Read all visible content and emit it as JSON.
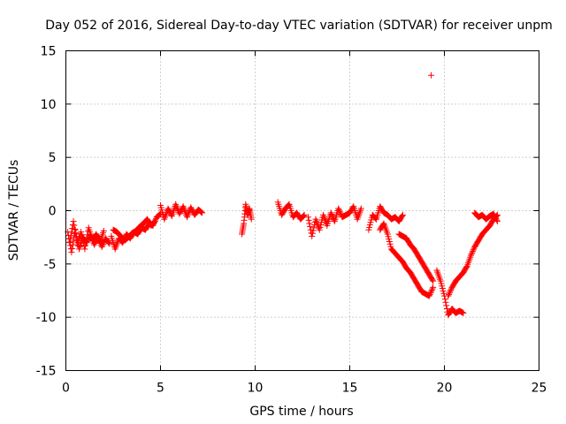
{
  "chart_data": {
    "type": "scatter",
    "title": "Day 052 of 2016, Sidereal Day-to-day VTEC variation (SDTVAR) for receiver unpm",
    "xlabel": "GPS time / hours",
    "ylabel": "SDTVAR / TECUs",
    "xlim": [
      0,
      25
    ],
    "ylim": [
      -15,
      15
    ],
    "xticks": [
      0,
      5,
      10,
      15,
      20,
      25
    ],
    "yticks": [
      -15,
      -10,
      -5,
      0,
      5,
      10,
      15
    ],
    "grid": true,
    "marker": "+",
    "color": "#ff0000",
    "segments": [
      {
        "name": "arc-01",
        "x": [
          0.1,
          0.3,
          0.5,
          0.7,
          0.9,
          1.1,
          1.3,
          1.5,
          1.7,
          1.9,
          2.1,
          2.3
        ],
        "y": [
          -2.0,
          -3.9,
          -1.8,
          -3.6,
          -2.5,
          -3.0,
          -2.2,
          -3.2,
          -2.4,
          -3.4,
          -2.6,
          -3.1
        ]
      },
      {
        "name": "arc-02",
        "x": [
          0.2,
          0.4,
          0.6,
          0.8,
          1.0,
          1.2,
          1.4,
          1.6,
          1.8,
          2.0
        ],
        "y": [
          -3.0,
          -1.0,
          -3.2,
          -2.0,
          -3.6,
          -1.6,
          -2.8,
          -2.2,
          -3.0,
          -1.9
        ]
      },
      {
        "name": "arc-03",
        "x": [
          2.4,
          2.6,
          2.8,
          3.0,
          3.2,
          3.4,
          3.6,
          3.8,
          4.0,
          4.2,
          4.4,
          4.6,
          4.8,
          5.0
        ],
        "y": [
          -2.4,
          -3.6,
          -2.6,
          -3.0,
          -2.2,
          -2.6,
          -2.0,
          -2.2,
          -1.6,
          -1.8,
          -1.2,
          -1.4,
          -0.6,
          -0.3
        ]
      },
      {
        "name": "arc-04",
        "x": [
          2.5,
          2.7,
          2.9,
          3.1,
          3.3,
          3.5,
          3.7,
          3.9,
          4.1,
          4.3,
          4.5,
          4.7
        ],
        "y": [
          -1.8,
          -2.0,
          -2.4,
          -2.8,
          -2.5,
          -2.1,
          -1.9,
          -1.5,
          -1.2,
          -0.8,
          -1.4,
          -1.0
        ]
      },
      {
        "name": "arc-05",
        "x": [
          5.0,
          5.2,
          5.4,
          5.6,
          5.8,
          6.0,
          6.2,
          6.4,
          6.6,
          6.8,
          7.0,
          7.2
        ],
        "y": [
          0.5,
          -0.8,
          0.2,
          -0.5,
          0.6,
          -0.3,
          0.4,
          -0.6,
          0.3,
          -0.4,
          0.1,
          -0.2
        ]
      },
      {
        "name": "arc-06",
        "x": [
          9.3,
          9.4,
          9.5,
          9.6,
          9.7,
          9.8
        ],
        "y": [
          -2.2,
          -1.2,
          0.6,
          -0.4,
          0.2,
          -0.8
        ]
      },
      {
        "name": "arc-07",
        "x": [
          11.2,
          11.4,
          11.6,
          11.8,
          12.0,
          12.2,
          12.4,
          12.6
        ],
        "y": [
          0.8,
          -0.4,
          0.2,
          0.6,
          -0.6,
          -0.2,
          -0.8,
          -0.4
        ]
      },
      {
        "name": "arc-08",
        "x": [
          12.8,
          13.0,
          13.2,
          13.4,
          13.6,
          13.8,
          14.0,
          14.2,
          14.4,
          14.6,
          14.8,
          15.0,
          15.2,
          15.4,
          15.6
        ],
        "y": [
          -0.6,
          -2.4,
          -0.8,
          -1.8,
          -0.4,
          -1.4,
          -0.2,
          -1.0,
          0.2,
          -0.6,
          -0.4,
          -0.2,
          0.4,
          -0.8,
          0.2
        ]
      },
      {
        "name": "arc-09",
        "x": [
          16.0,
          16.2,
          16.4,
          16.6,
          16.8,
          17.0,
          17.2,
          17.4,
          17.6,
          17.8
        ],
        "y": [
          -1.8,
          -0.4,
          -0.8,
          0.4,
          -0.2,
          -0.4,
          -0.8,
          -0.6,
          -1.0,
          -0.4
        ]
      },
      {
        "name": "arc-10",
        "x": [
          16.6,
          16.8,
          17.0,
          17.2,
          17.4,
          17.6,
          17.8,
          18.0,
          18.2,
          18.4,
          18.6,
          18.8,
          19.0,
          19.2,
          19.4
        ],
        "y": [
          -1.8,
          -1.2,
          -2.2,
          -3.6,
          -4.0,
          -4.4,
          -4.8,
          -5.4,
          -5.8,
          -6.4,
          -7.0,
          -7.6,
          -7.8,
          -8.0,
          -7.2
        ]
      },
      {
        "name": "arc-11",
        "x": [
          17.6,
          17.8,
          18.0,
          18.2,
          18.4,
          18.6,
          18.8,
          19.0,
          19.2,
          19.4
        ],
        "y": [
          -2.2,
          -2.4,
          -2.6,
          -3.2,
          -3.6,
          -4.2,
          -4.8,
          -5.4,
          -6.0,
          -6.6
        ]
      },
      {
        "name": "arc-12",
        "x": [
          19.6,
          19.8,
          20.0,
          20.2,
          20.4,
          20.6,
          20.8,
          21.0
        ],
        "y": [
          -5.6,
          -6.6,
          -8.0,
          -9.8,
          -9.2,
          -9.6,
          -9.4,
          -9.6
        ]
      },
      {
        "name": "arc-13",
        "x": [
          20.2,
          20.4,
          20.6,
          20.8,
          21.0,
          21.2,
          21.4,
          21.6,
          21.8,
          22.0,
          22.2,
          22.4,
          22.6,
          22.8
        ],
        "y": [
          -8.0,
          -7.2,
          -6.6,
          -6.2,
          -5.8,
          -5.2,
          -4.2,
          -3.4,
          -2.8,
          -2.2,
          -1.8,
          -1.4,
          -0.8,
          -0.4
        ]
      },
      {
        "name": "arc-14",
        "x": [
          21.6,
          21.8,
          22.0,
          22.2,
          22.4,
          22.6,
          22.8
        ],
        "y": [
          -0.2,
          -0.6,
          -0.4,
          -0.8,
          -0.5,
          -0.3,
          -1.0
        ]
      },
      {
        "name": "outlier",
        "x": [
          19.3
        ],
        "y": [
          12.7
        ]
      }
    ]
  }
}
